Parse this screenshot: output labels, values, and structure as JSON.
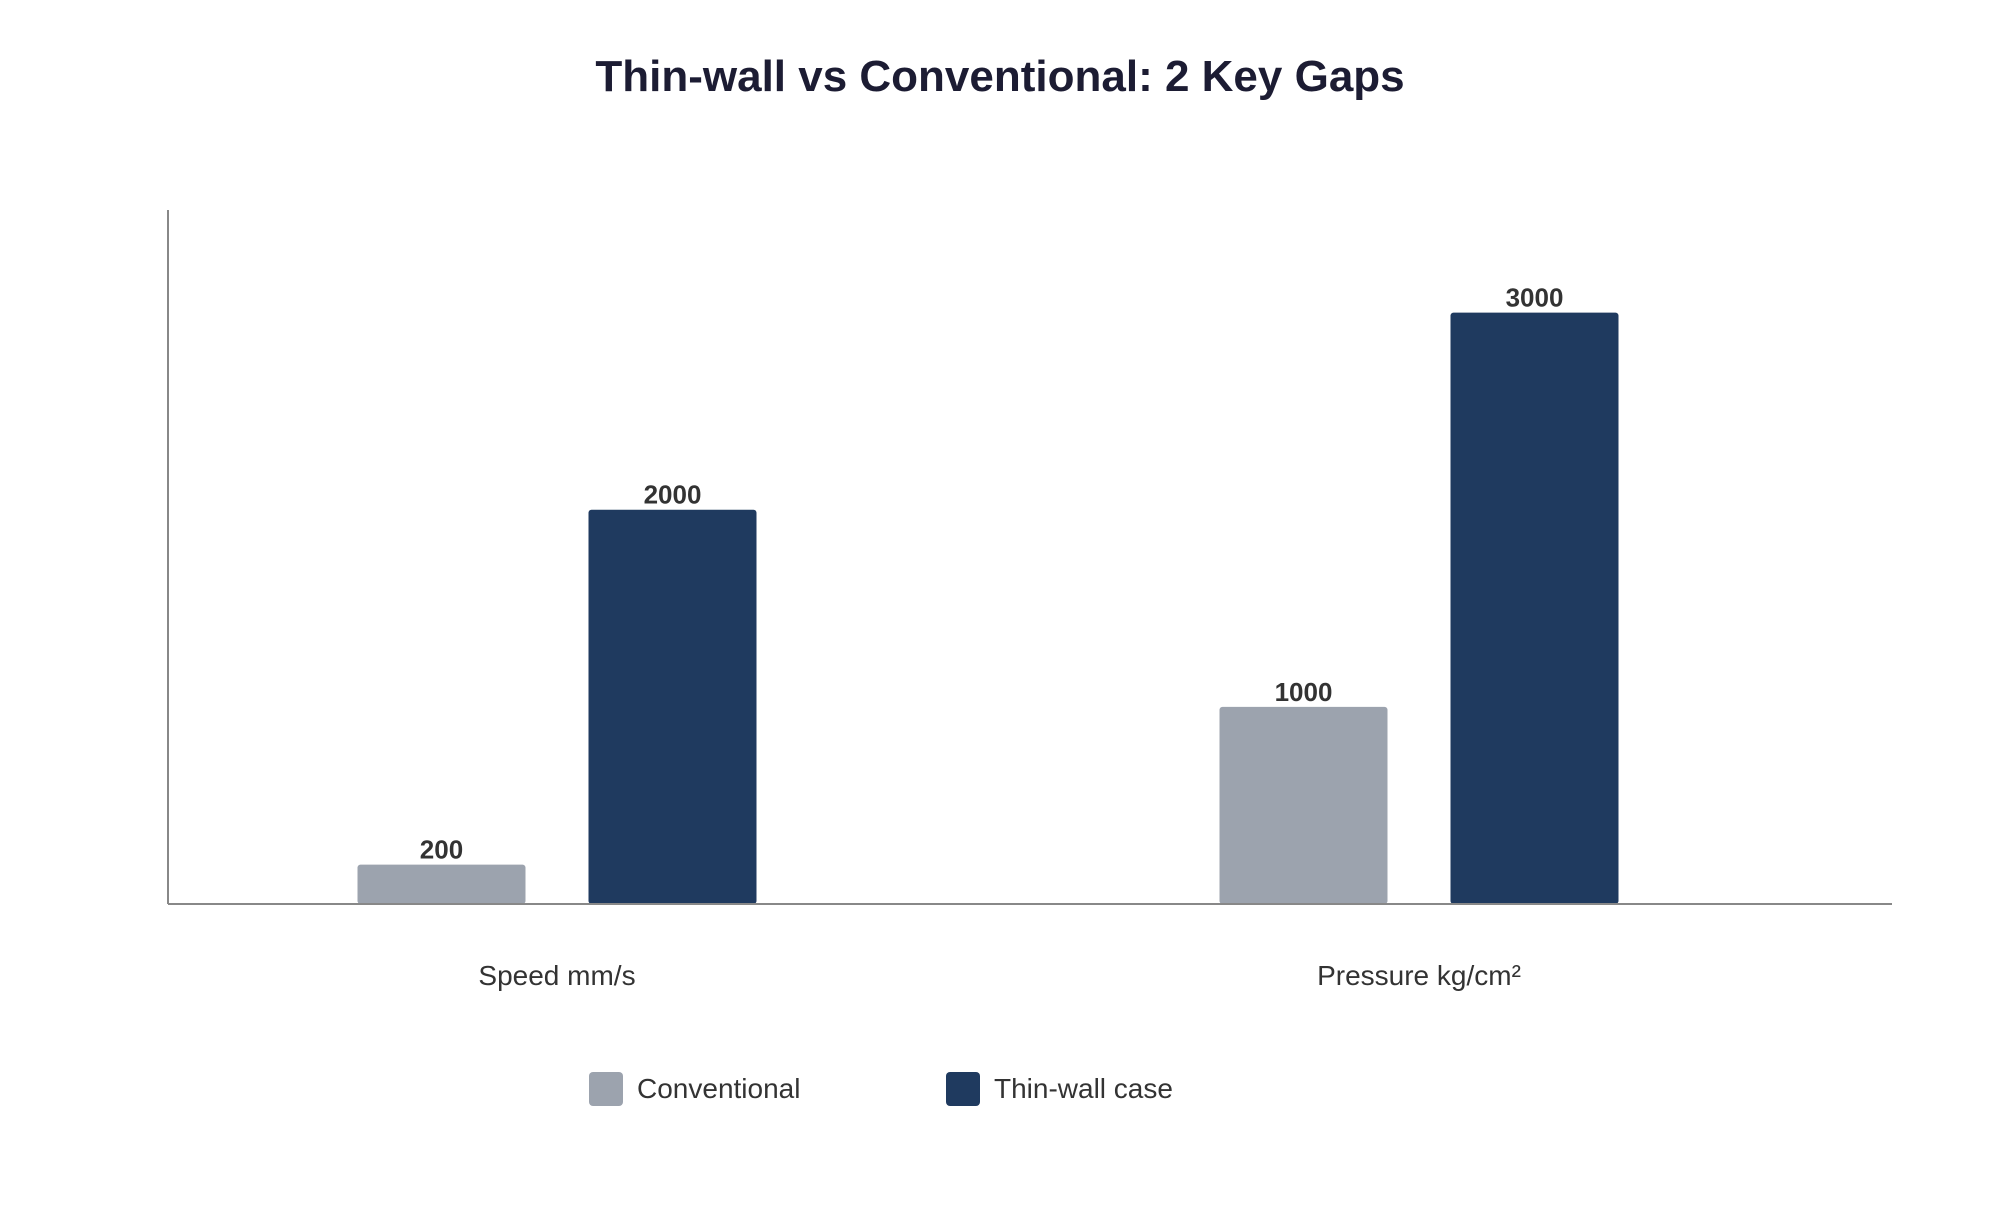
{
  "chart_data": {
    "type": "bar",
    "title": "Thin-wall vs Conventional: 2 Key Gaps",
    "categories": [
      "Speed mm/s",
      "Pressure kg/cm²"
    ],
    "series": [
      {
        "name": "Conventional",
        "values": [
          200,
          1000
        ],
        "color": "#9ca3ae"
      },
      {
        "name": "Thin-wall case",
        "values": [
          2000,
          3000
        ],
        "color": "#1f3a5f"
      }
    ],
    "ylim": [
      0,
      3500
    ],
    "grid": false,
    "legend_position": "bottom-center",
    "data_labels": true
  }
}
